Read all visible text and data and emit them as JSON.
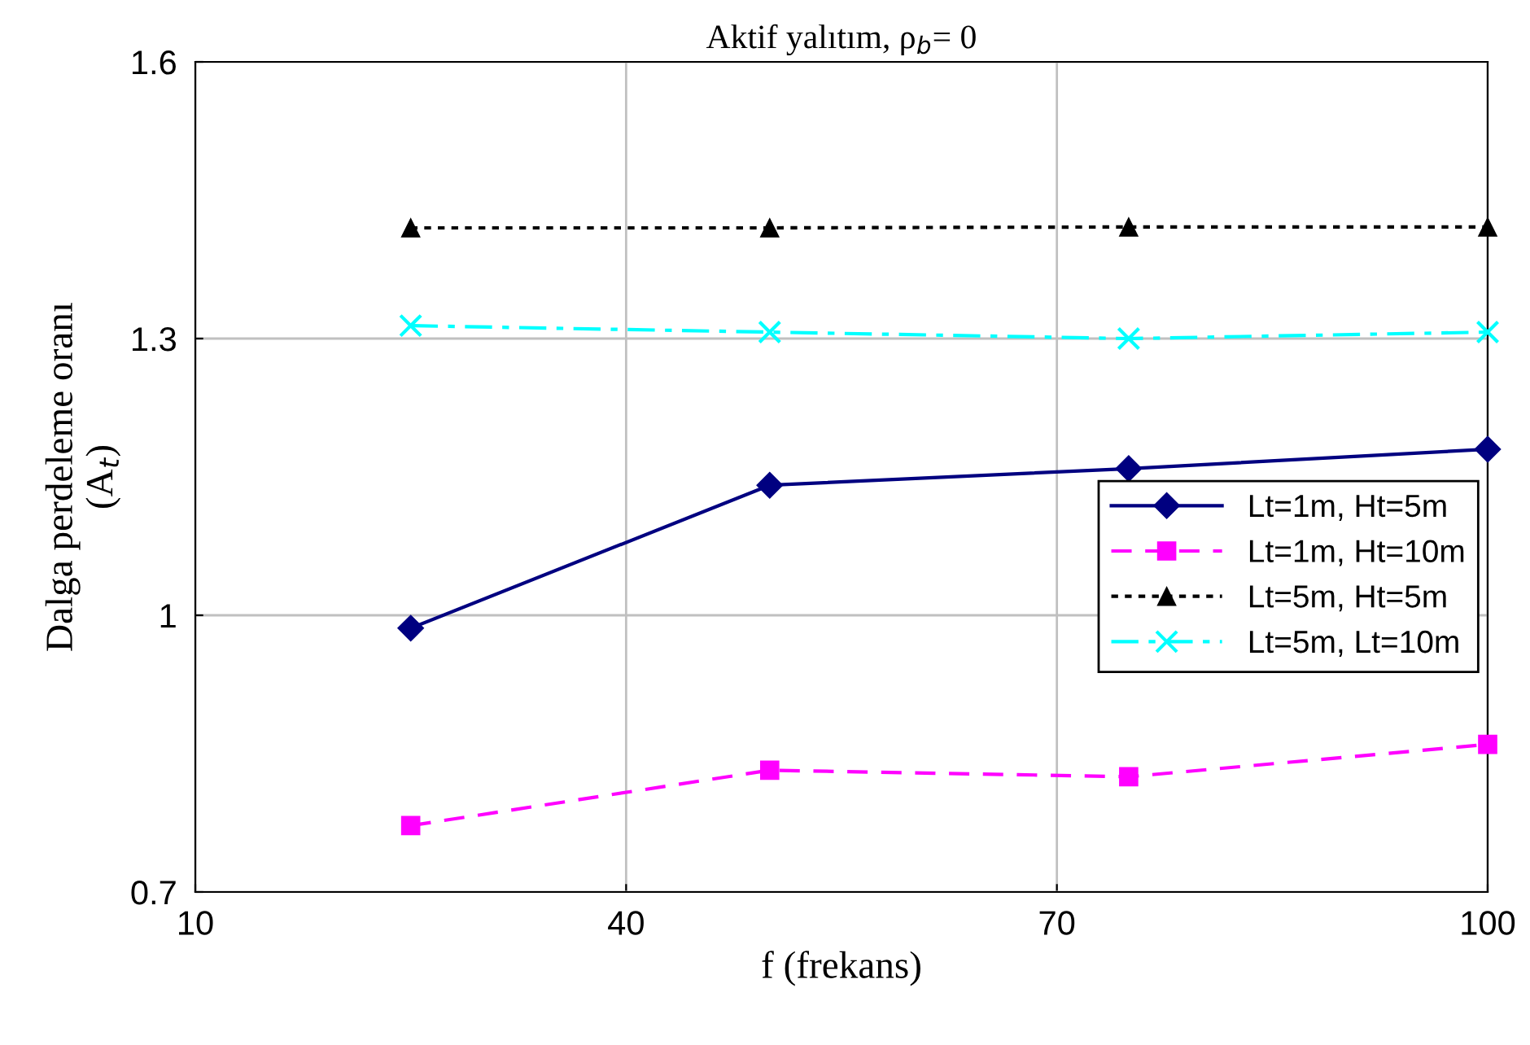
{
  "chart_data": {
    "type": "line",
    "title": "Aktif yalıtım, ρ$_{b}$= 0",
    "xlabel": "f (frekans)",
    "ylabel": "Dalga perdeleme oranı\n(A$_{t}$)",
    "x": [
      25,
      50,
      75,
      100
    ],
    "series": [
      {
        "name": "Lt=1m, Ht=5m",
        "color": "#000080",
        "values": [
          0.986,
          1.141,
          1.159,
          1.18
        ],
        "marker": "diamond",
        "line_style": "solid"
      },
      {
        "name": "Lt=1m, Ht=10m",
        "color": "#ff00ff",
        "values": [
          0.772,
          0.832,
          0.825,
          0.86
        ],
        "marker": "square",
        "line_style": "dashed"
      },
      {
        "name": "Lt=5m, Ht=5m",
        "color": "#000000",
        "values": [
          1.42,
          1.42,
          1.421,
          1.421
        ],
        "marker": "triangle",
        "line_style": "dotted"
      },
      {
        "name": "Lt=5m, Lt=10m",
        "color": "#00ffff",
        "values": [
          1.314,
          1.307,
          1.3,
          1.307
        ],
        "marker": "cross",
        "line_style": "dashdot"
      }
    ],
    "xlim": [
      10,
      100
    ],
    "xticks": [
      10,
      40,
      70,
      100
    ],
    "ylim": [
      0.7,
      1.6
    ],
    "yticks": [
      0.7,
      1.0,
      1.3,
      1.6
    ],
    "grid": true,
    "legend": "center right"
  }
}
